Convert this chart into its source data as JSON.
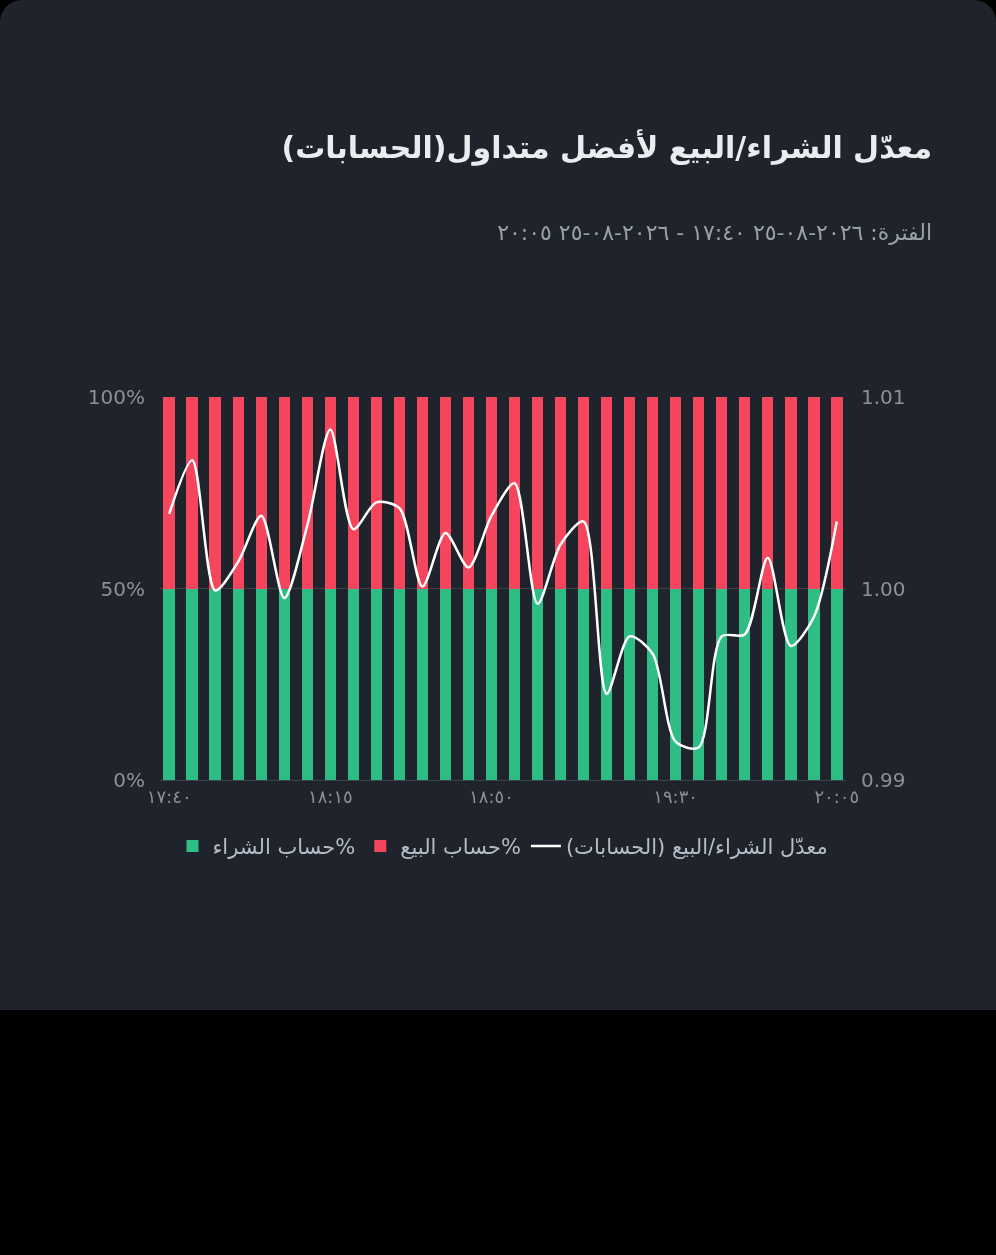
{
  "chart_data": {
    "type": "bar",
    "title": "معدّل الشراء/البيع لأفضل متداول(الحسابات)",
    "subtitle": "الفترة: ٢٠٢٦-٠٨-٢٥ ١٧:٤٠ - ٢٠٢٦-٠٨-٢٥ ٢٠:٠٥",
    "categories": [
      "١٧:٤٠",
      null,
      null,
      null,
      null,
      null,
      null,
      "١٨:١٥",
      null,
      null,
      null,
      null,
      null,
      null,
      "١٨:٥٠",
      null,
      null,
      null,
      null,
      null,
      null,
      null,
      "١٩:٣٠",
      null,
      null,
      null,
      null,
      null,
      null,
      "٢٠:٠٥"
    ],
    "stacked": true,
    "series": [
      {
        "name": "حساب الشراء%",
        "color": "#2ebd85",
        "values": [
          50,
          50,
          50,
          50,
          50,
          50,
          50,
          50,
          50,
          50,
          50,
          50,
          50,
          50,
          50,
          50,
          50,
          50,
          50,
          50,
          50,
          50,
          50,
          50,
          50,
          50,
          50,
          50,
          50,
          50
        ]
      },
      {
        "name": "حساب البيع%",
        "color": "#f6465d",
        "values": [
          50,
          50,
          50,
          50,
          50,
          50,
          50,
          50,
          50,
          50,
          50,
          50,
          50,
          50,
          50,
          50,
          50,
          50,
          50,
          50,
          50,
          50,
          50,
          50,
          50,
          50,
          50,
          50,
          50,
          50
        ]
      },
      {
        "name": "معدّل الشراء/البيع (الحسابات)",
        "type": "line",
        "axis": "y2",
        "color": "#ffffff",
        "values": [
          1.0039,
          1.0067,
          0.9999,
          1.0014,
          1.0038,
          0.9995,
          1.0033,
          1.0083,
          1.0031,
          1.0045,
          1.0042,
          1.0001,
          1.0029,
          1.0011,
          1.0038,
          1.0055,
          0.9992,
          1.0023,
          1.0035,
          0.9945,
          0.9975,
          0.9966,
          0.992,
          0.9917,
          0.9975,
          0.9976,
          1.0016,
          0.997,
          0.9985,
          1.0035
        ]
      }
    ],
    "ylim": [
      0,
      100
    ],
    "yticks": [
      {
        "value": 0,
        "label": "0%"
      },
      {
        "value": 50,
        "label": "50%"
      },
      {
        "value": 100,
        "label": "100%"
      }
    ],
    "y2lim": [
      0.99,
      1.01
    ],
    "y2ticks": [
      0.99,
      {
        "value": 1,
        "label": "1.00"
      },
      1.01
    ],
    "grid": "y",
    "legend": "bottom",
    "marker": "none",
    "line_style": "solid"
  }
}
